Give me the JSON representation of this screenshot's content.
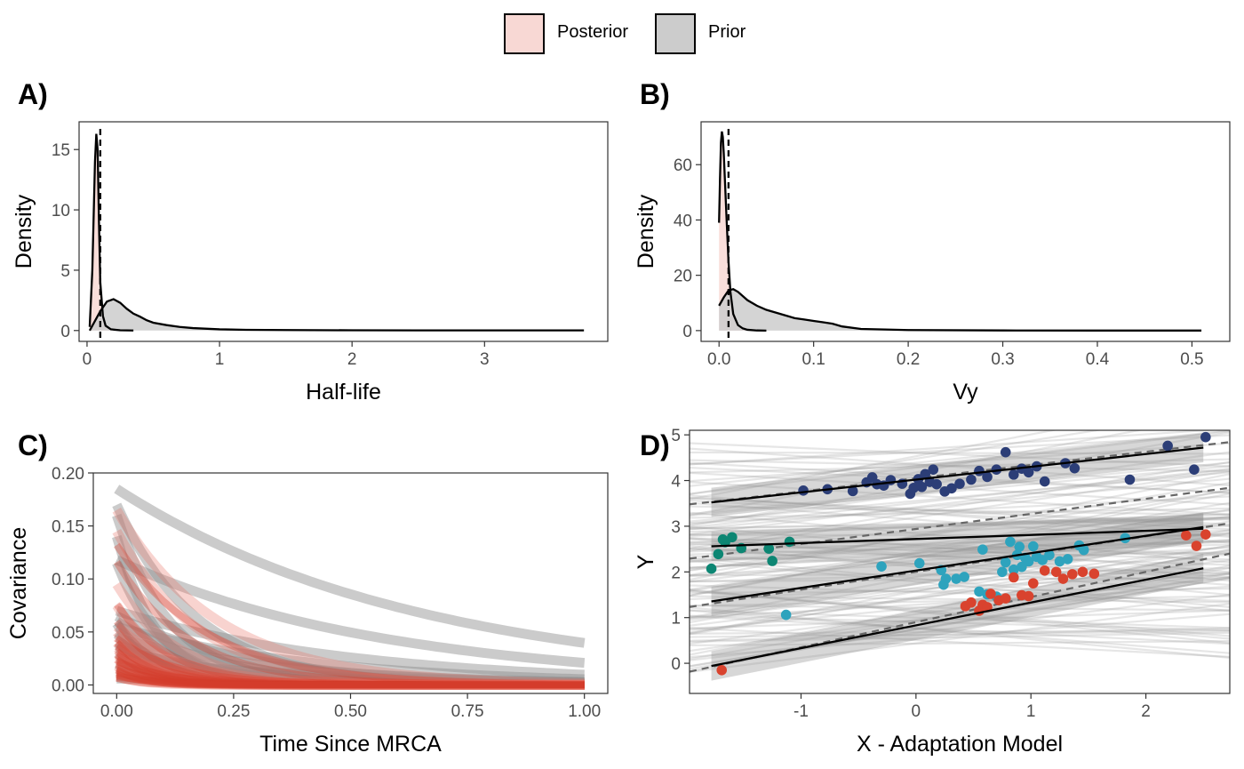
{
  "legend": {
    "items": [
      {
        "label": "Posterior",
        "fill": "#f8d8d4"
      },
      {
        "label": "Prior",
        "fill": "#cccccc"
      }
    ]
  },
  "colors": {
    "posterior_fill": "#f8d8d4",
    "prior_fill": "#cccccc",
    "posterior_ribbon": "#e8766a",
    "prior_ribbon": "#8c8c8c",
    "curve_red": "#d33b2a",
    "line": "#000000",
    "dashed": "#666666",
    "regime_dark_blue": "#2c3e77",
    "regime_teal": "#0d8673",
    "regime_cyan": "#2ea3bd",
    "regime_red": "#d9432e"
  },
  "chart_data": [
    {
      "panel": "A)",
      "type": "area",
      "xlabel": "Half-life",
      "ylabel": "Density",
      "xlim": [
        -0.06,
        3.93
      ],
      "ylim": [
        -0.9,
        17.3
      ],
      "xticks": [
        "0",
        "1",
        "2",
        "3"
      ],
      "yticks": [
        "0",
        "5",
        "10",
        "15"
      ],
      "series": [
        {
          "name": "Posterior",
          "x": [
            0.02,
            0.04,
            0.06,
            0.07,
            0.08,
            0.09,
            0.1,
            0.12,
            0.14,
            0.18,
            0.25,
            0.35
          ],
          "values": [
            0.3,
            5,
            14,
            16.3,
            15,
            9,
            4,
            1.2,
            0.4,
            0.1,
            0.02,
            0
          ]
        },
        {
          "name": "Prior",
          "x": [
            0.02,
            0.05,
            0.1,
            0.15,
            0.2,
            0.25,
            0.3,
            0.35,
            0.4,
            0.45,
            0.5,
            0.6,
            0.7,
            0.8,
            1.0,
            1.2,
            1.5,
            2.0,
            2.5,
            3.0,
            3.5,
            3.75
          ],
          "values": [
            0,
            0.6,
            1.6,
            2.4,
            2.6,
            2.3,
            1.8,
            1.4,
            1.15,
            0.85,
            0.65,
            0.45,
            0.3,
            0.2,
            0.1,
            0.06,
            0.04,
            0.02,
            0.01,
            0.01,
            0.01,
            0.01
          ]
        }
      ],
      "vline": 0.1
    },
    {
      "panel": "B)",
      "type": "area",
      "xlabel": "Vy",
      "ylabel": "Density",
      "xlim": [
        -0.019,
        0.54
      ],
      "ylim": [
        -3.9,
        75.5
      ],
      "xticks": [
        "0.0",
        "0.1",
        "0.2",
        "0.3",
        "0.4",
        "0.5"
      ],
      "yticks": [
        "0",
        "20",
        "40",
        "60"
      ],
      "series": [
        {
          "name": "Posterior",
          "x": [
            0.0,
            0.001,
            0.002,
            0.003,
            0.004,
            0.005,
            0.006,
            0.008,
            0.01,
            0.012,
            0.015,
            0.02,
            0.025,
            0.03,
            0.04,
            0.05
          ],
          "values": [
            39,
            55,
            68,
            72,
            70,
            64,
            56,
            40,
            25,
            14,
            6,
            2,
            0.8,
            0.3,
            0.05,
            0
          ]
        },
        {
          "name": "Prior",
          "x": [
            0.0,
            0.005,
            0.01,
            0.015,
            0.02,
            0.03,
            0.04,
            0.05,
            0.06,
            0.07,
            0.08,
            0.09,
            0.1,
            0.11,
            0.12,
            0.13,
            0.15,
            0.2,
            0.3,
            0.4,
            0.51
          ],
          "values": [
            9,
            12,
            14.5,
            15,
            14,
            11,
            9,
            7.5,
            6.5,
            5.5,
            4.5,
            4,
            3.5,
            3,
            2.5,
            1.5,
            0.6,
            0.2,
            0.05,
            0.02,
            0.01
          ]
        }
      ],
      "vline": 0.01
    },
    {
      "panel": "C)",
      "type": "line",
      "xlabel": "Time Since MRCA",
      "ylabel": "Covariance",
      "xlim": [
        -0.05,
        1.05
      ],
      "ylim": [
        -0.008,
        0.2
      ],
      "xticks": [
        "0.00",
        "0.25",
        "0.50",
        "0.75",
        "1.00"
      ],
      "yticks": [
        "0.00",
        "0.05",
        "0.10",
        "0.15",
        "0.20"
      ],
      "series": [
        {
          "name": "Prior",
          "curves": [
            {
              "vy": 0.185,
              "hl": 0.45
            },
            {
              "vy": 0.118,
              "hl": 0.4
            },
            {
              "vy": 0.17,
              "hl": 0.12
            },
            {
              "vy": 0.16,
              "hl": 0.08
            },
            {
              "vy": 0.14,
              "hl": 0.06
            },
            {
              "vy": 0.115,
              "hl": 0.07
            },
            {
              "vy": 0.07,
              "hl": 0.35
            },
            {
              "vy": 0.065,
              "hl": 0.2
            },
            {
              "vy": 0.06,
              "hl": 0.15
            },
            {
              "vy": 0.055,
              "hl": 0.3
            },
            {
              "vy": 0.05,
              "hl": 0.12
            },
            {
              "vy": 0.045,
              "hl": 0.25
            },
            {
              "vy": 0.04,
              "hl": 0.1
            },
            {
              "vy": 0.035,
              "hl": 0.18
            },
            {
              "vy": 0.03,
              "hl": 0.08
            },
            {
              "vy": 0.025,
              "hl": 0.3
            },
            {
              "vy": 0.02,
              "hl": 0.06
            },
            {
              "vy": 0.015,
              "hl": 0.2
            },
            {
              "vy": 0.012,
              "hl": 0.1
            },
            {
              "vy": 0.008,
              "hl": 0.3
            },
            {
              "vy": 0.006,
              "hl": 0.5
            },
            {
              "vy": 0.058,
              "hl": 0.05
            },
            {
              "vy": 0.048,
              "hl": 0.09
            },
            {
              "vy": 0.038,
              "hl": 0.14
            }
          ]
        },
        {
          "name": "Posterior",
          "curves": [
            {
              "vy": 0.165,
              "hl": 0.15
            },
            {
              "vy": 0.145,
              "hl": 0.12
            },
            {
              "vy": 0.095,
              "hl": 0.09
            },
            {
              "vy": 0.075,
              "hl": 0.07
            },
            {
              "vy": 0.055,
              "hl": 0.1
            },
            {
              "vy": 0.05,
              "hl": 0.06
            },
            {
              "vy": 0.045,
              "hl": 0.08
            },
            {
              "vy": 0.04,
              "hl": 0.05
            },
            {
              "vy": 0.035,
              "hl": 0.07
            },
            {
              "vy": 0.03,
              "hl": 0.06
            },
            {
              "vy": 0.028,
              "hl": 0.09
            },
            {
              "vy": 0.025,
              "hl": 0.05
            },
            {
              "vy": 0.02,
              "hl": 0.07
            },
            {
              "vy": 0.018,
              "hl": 0.04
            },
            {
              "vy": 0.015,
              "hl": 0.06
            },
            {
              "vy": 0.012,
              "hl": 0.05
            },
            {
              "vy": 0.01,
              "hl": 0.08
            },
            {
              "vy": 0.008,
              "hl": 0.04
            }
          ]
        }
      ]
    },
    {
      "panel": "D)",
      "type": "scatter",
      "xlabel": "X - Adaptation Model",
      "ylabel": "Y",
      "xlim": [
        -1.97,
        2.73
      ],
      "ylim": [
        -0.66,
        5.1
      ],
      "xticks": [
        "-1",
        "0",
        "1",
        "2"
      ],
      "yticks": [
        "0",
        "1",
        "2",
        "3",
        "4",
        "5"
      ],
      "fit_lines": [
        {
          "intercept": 4.02,
          "slope": 0.28
        },
        {
          "intercept": 2.72,
          "slope": 0.09
        },
        {
          "intercept": 2.03,
          "slope": 0.38
        },
        {
          "intercept": 0.83,
          "slope": 0.5
        }
      ],
      "dashed_lines": [
        {
          "intercept": 4.05,
          "slope": 0.29
        },
        {
          "intercept": 2.94,
          "slope": 0.33
        },
        {
          "intercept": 2.0,
          "slope": 0.39
        },
        {
          "intercept": 0.9,
          "slope": 0.55
        }
      ],
      "series": [
        {
          "name": "regime_dark_blue",
          "x": [
            -0.98,
            -0.77,
            -0.55,
            -0.43,
            -0.38,
            -0.34,
            -0.28,
            -0.22,
            -0.12,
            -0.05,
            -0.02,
            0.02,
            0.05,
            0.08,
            0.12,
            0.15,
            0.18,
            0.25,
            0.31,
            0.38,
            0.48,
            0.55,
            0.62,
            0.7,
            0.78,
            0.85,
            0.92,
            0.98,
            1.05,
            1.12,
            1.3,
            1.38,
            1.86,
            2.19,
            2.42,
            2.52
          ],
          "y": [
            3.78,
            3.81,
            3.77,
            3.96,
            4.07,
            3.92,
            3.89,
            4.01,
            3.93,
            3.71,
            3.84,
            4.03,
            3.86,
            4.14,
            3.97,
            4.24,
            3.92,
            3.76,
            3.83,
            3.93,
            4.02,
            4.21,
            4.08,
            4.24,
            4.62,
            4.13,
            4.26,
            4.18,
            4.31,
            3.98,
            4.38,
            4.27,
            4.02,
            4.76,
            4.24,
            4.95
          ]
        },
        {
          "name": "regime_teal",
          "x": [
            -1.78,
            -1.72,
            -1.66,
            -1.6,
            -1.52,
            -1.28,
            -1.25,
            -1.1,
            -1.68
          ],
          "y": [
            2.07,
            2.39,
            2.65,
            2.76,
            2.52,
            2.51,
            2.24,
            2.66,
            2.71
          ]
        },
        {
          "name": "regime_cyan",
          "x": [
            -1.13,
            -0.3,
            0.03,
            0.22,
            0.24,
            0.26,
            0.35,
            0.42,
            0.55,
            0.58,
            0.62,
            0.7,
            0.75,
            0.78,
            0.82,
            0.85,
            0.88,
            0.9,
            0.92,
            0.95,
            0.98,
            1.02,
            1.05,
            1.1,
            1.16,
            1.25,
            1.32,
            1.42,
            1.46,
            1.82
          ],
          "y": [
            1.06,
            2.12,
            2.19,
            2.04,
            1.72,
            1.85,
            1.85,
            1.89,
            1.57,
            2.49,
            1.51,
            1.46,
            2.0,
            2.21,
            2.66,
            2.05,
            2.37,
            2.55,
            2.11,
            2.31,
            2.23,
            2.56,
            2.33,
            2.26,
            2.37,
            2.23,
            2.28,
            2.58,
            2.48,
            2.74
          ]
        },
        {
          "name": "regime_red",
          "x": [
            -1.69,
            0.43,
            0.48,
            0.55,
            0.58,
            0.62,
            0.65,
            0.72,
            0.78,
            0.85,
            0.92,
            0.98,
            1.02,
            1.12,
            1.22,
            1.28,
            1.36,
            1.45,
            1.55,
            2.35,
            2.44,
            2.52
          ],
          "y": [
            -0.15,
            1.25,
            1.33,
            1.15,
            1.28,
            1.23,
            1.52,
            1.38,
            1.42,
            1.88,
            1.49,
            1.47,
            1.75,
            2.03,
            2.0,
            1.85,
            1.95,
            2.0,
            1.96,
            2.8,
            2.57,
            2.82
          ]
        }
      ]
    }
  ]
}
